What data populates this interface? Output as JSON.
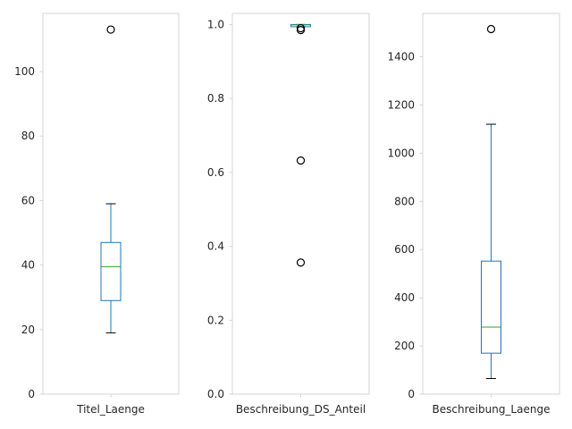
{
  "chart_data": [
    {
      "type": "box",
      "category": "Titel_Laenge",
      "ylim": [
        0,
        118
      ],
      "yticks": [
        0,
        20,
        40,
        60,
        80,
        100
      ],
      "box": {
        "whisker_low": 19,
        "q1": 29,
        "median": 39.5,
        "q3": 47,
        "whisker_high": 59
      },
      "outliers": [
        113
      ],
      "grid": false
    },
    {
      "type": "box",
      "category": "Beschreibung_DS_Anteil",
      "ylim": [
        0,
        1.03
      ],
      "yticks": [
        "0.0",
        "0.2",
        "0.4",
        "0.6",
        "0.8",
        "1.0"
      ],
      "box": {
        "whisker_low": 0.994,
        "q1": 0.994,
        "median": 0.999,
        "q3": 1.0,
        "whisker_high": 1.0
      },
      "outliers": [
        0.99,
        0.985,
        0.632,
        0.356
      ],
      "grid": false
    },
    {
      "type": "box",
      "category": "Beschreibung_Laenge",
      "ylim": [
        0,
        1580
      ],
      "yticks": [
        0,
        200,
        400,
        600,
        800,
        1000,
        1200,
        1400
      ],
      "box": {
        "whisker_low": 65,
        "q1": 170,
        "median": 278,
        "q3": 552,
        "whisker_high": 1120
      },
      "outliers": [
        1515
      ],
      "grid": false
    }
  ],
  "colors": {
    "box": "#1f77b4",
    "median": "#2ca02c",
    "whisker_cap": "#000000",
    "outlier": "#000000",
    "frame": "#cccccc",
    "text": "#262626"
  }
}
